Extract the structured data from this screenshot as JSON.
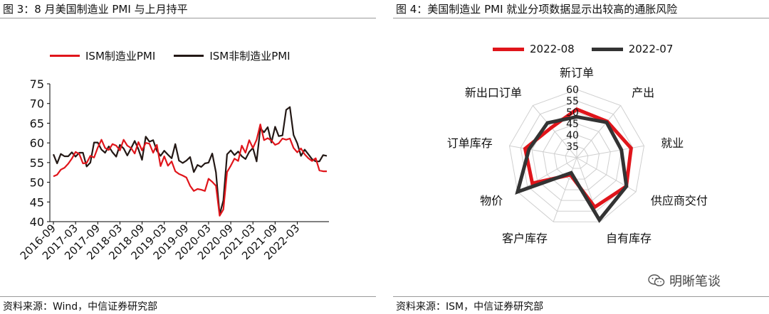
{
  "left": {
    "title": "图 3：8 月美国制造业 PMI 与上月持平",
    "source": "资料来源：Wind，中信证券研究部"
  },
  "right": {
    "title": "图 4：美国制造业 PMI 就业分项数据显示出较高的通胀风险",
    "source": "资料来源：ISM，中信证券研究部"
  },
  "watermark": {
    "text": "明晰笔谈",
    "icon": "wechat-icon"
  },
  "chart_data": [
    {
      "type": "line",
      "x_start": "2016-09",
      "x_ticks": [
        "2016-09",
        "2017-03",
        "2017-09",
        "2018-03",
        "2018-09",
        "2019-03",
        "2019-09",
        "2020-03",
        "2020-09",
        "2021-03",
        "2021-09",
        "2022-03"
      ],
      "ylim": [
        40,
        75
      ],
      "yticks": [
        40,
        45,
        50,
        55,
        60,
        65,
        70,
        75
      ],
      "grid": false,
      "legend_position": "top",
      "series": [
        {
          "name": "ISM制造业PMI",
          "color": "#e0151b",
          "values": [
            51.5,
            51.9,
            53.2,
            53.7,
            54.7,
            56.0,
            57.7,
            57.2,
            54.8,
            54.9,
            56.7,
            56.3,
            58.8,
            60.8,
            58.7,
            58.2,
            59.7,
            59.3,
            58.1,
            60.8,
            59.3,
            58.7,
            57.3,
            60.2,
            58.1,
            60.0,
            59.8,
            57.5,
            59.5,
            54.1,
            56.6,
            54.2,
            55.3,
            52.8,
            52.1,
            51.7,
            51.2,
            49.1,
            47.8,
            48.3,
            48.1,
            47.8,
            50.9,
            50.1,
            49.1,
            41.5,
            43.1,
            52.6,
            54.2,
            56.0,
            55.4,
            59.3,
            57.5,
            60.7,
            58.7,
            60.8,
            64.7,
            60.7,
            61.2,
            60.6,
            59.5,
            59.9,
            61.1,
            60.8,
            61.1,
            58.7,
            57.6,
            58.6,
            57.1,
            56.1,
            55.4,
            56.1,
            53.0,
            52.8,
            52.8
          ]
        },
        {
          "name": "ISM非制造业PMI",
          "color": "#231815",
          "values": [
            57.1,
            54.8,
            57.2,
            56.6,
            56.6,
            57.6,
            56.5,
            57.5,
            57.5,
            54.0,
            55.0,
            60.1,
            60.1,
            58.3,
            57.5,
            59.1,
            57.6,
            56.5,
            59.5,
            58.6,
            56.8,
            58.6,
            60.5,
            58.4,
            55.7,
            61.6,
            60.3,
            60.7,
            58.0,
            56.7,
            58.0,
            57.0,
            56.1,
            59.7,
            55.5,
            54.9,
            55.5,
            56.4,
            52.6,
            54.4,
            53.9,
            54.8,
            55.0,
            57.3,
            52.5,
            41.8,
            45.4,
            57.1,
            58.1,
            56.9,
            57.8,
            56.6,
            55.9,
            57.7,
            58.7,
            55.3,
            63.7,
            62.7,
            64.0,
            60.1,
            64.1,
            61.7,
            61.9,
            68.4,
            69.1,
            62.0,
            59.9,
            56.7,
            58.3,
            57.1,
            55.9,
            55.3,
            55.3,
            56.9,
            56.7
          ]
        }
      ]
    },
    {
      "type": "radar",
      "categories": [
        "新订单",
        "产出",
        "就业",
        "供应商交付",
        "自有库存",
        "客户库存",
        "物价",
        "订单库存",
        "新出口订单"
      ],
      "rlim": [
        30,
        60
      ],
      "rticks": [
        35,
        40,
        45,
        50,
        55,
        60
      ],
      "legend_position": "top",
      "series": [
        {
          "name": "2022-08",
          "color": "#e0151b",
          "values": [
            51.3,
            50.8,
            54.2,
            55.1,
            53.1,
            38.0,
            52.5,
            53.0,
            47.3
          ]
        },
        {
          "name": "2022-07",
          "color": "#333333",
          "values": [
            48.0,
            50.3,
            49.9,
            55.2,
            59.1,
            37.1,
            60.0,
            51.3,
            50.0
          ]
        }
      ]
    }
  ]
}
